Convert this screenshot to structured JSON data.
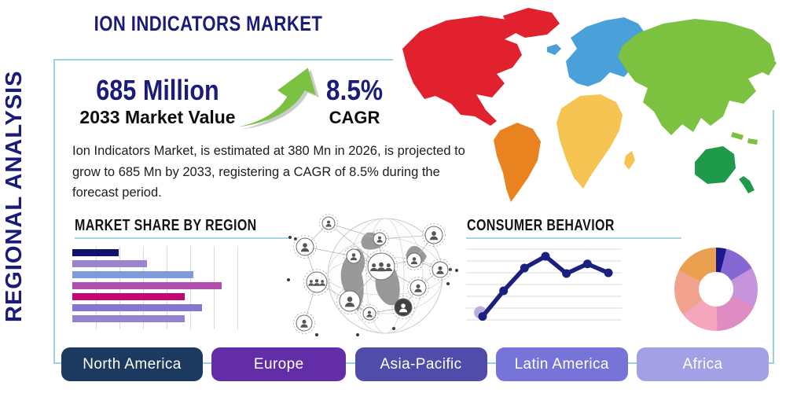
{
  "header": {
    "title": "ION INDICATORS MARKET",
    "title_color": "#1b1b78"
  },
  "sidebar": {
    "vertical_label": "REGIONAL ANALYSIS"
  },
  "stats": {
    "market_value": "685 Million",
    "market_value_caption": "2033 Market Value",
    "cagr_value": "8.5%",
    "cagr_caption": "CAGR"
  },
  "description": "Ion Indicators Market, is estimated at 380 Mn in 2026, is projected to grow to 685 Mn by 2033, registering a CAGR of 8.5% during the forecast period.",
  "sections": {
    "market_share_title": "MARKET SHARE BY REGION",
    "consumer_title": "CONSUMER BEHAVIOR"
  },
  "icons": {
    "growth_arrow": "growth-arrow-icon",
    "globe_network": "globe-network-illustration"
  },
  "accent_colors": {
    "panel_border": "#9ccfe6",
    "arrow_green": "#7cc242"
  },
  "map_regions": [
    {
      "name": "North America",
      "color": "#e2212f"
    },
    {
      "name": "South America",
      "color": "#e8831f"
    },
    {
      "name": "Europe",
      "color": "#4aa0d8"
    },
    {
      "name": "Africa",
      "color": "#f6c452"
    },
    {
      "name": "Asia",
      "color": "#7cc140"
    },
    {
      "name": "Oceania",
      "color": "#1f9a4a"
    }
  ],
  "buttons": [
    {
      "label": "North America",
      "color": "#1c3a60"
    },
    {
      "label": "Europe",
      "color": "#622da6"
    },
    {
      "label": "Asia-Pacific",
      "color": "#4f4caa"
    },
    {
      "label": "Latin America",
      "color": "#7674d9"
    },
    {
      "label": "Africa",
      "color": "#a3a0e6"
    }
  ],
  "chart_data": [
    {
      "type": "bar",
      "orientation": "horizontal",
      "title": "MARKET SHARE BY REGION",
      "values": [
        31,
        50,
        81,
        100,
        75,
        87,
        75
      ],
      "colors": [
        "#10106e",
        "#9b85cc",
        "#7f9bda",
        "#b04fae",
        "#c40873",
        "#8377d2",
        "#9583cf"
      ],
      "xlim": [
        0,
        100
      ],
      "grid": true,
      "axis_labels": false
    },
    {
      "type": "line",
      "title": "CONSUMER BEHAVIOR",
      "x": [
        1,
        2,
        3,
        4,
        5,
        6,
        7
      ],
      "values": [
        5,
        42,
        75,
        92,
        67,
        81,
        68
      ],
      "color": "#1b1f7e",
      "first_point_halo_color": "#b49ddb",
      "ylim": [
        0,
        100
      ],
      "grid": true,
      "axis_labels": false
    },
    {
      "type": "pie",
      "donut": true,
      "values": [
        4,
        12.5,
        15,
        18,
        15,
        18,
        17.5
      ],
      "colors": [
        "#1a1a8c",
        "#8668d2",
        "#c693dd",
        "#de8cc2",
        "#f4a6bd",
        "#f2a38f",
        "#e9a04f"
      ],
      "labels_shown": false
    }
  ]
}
